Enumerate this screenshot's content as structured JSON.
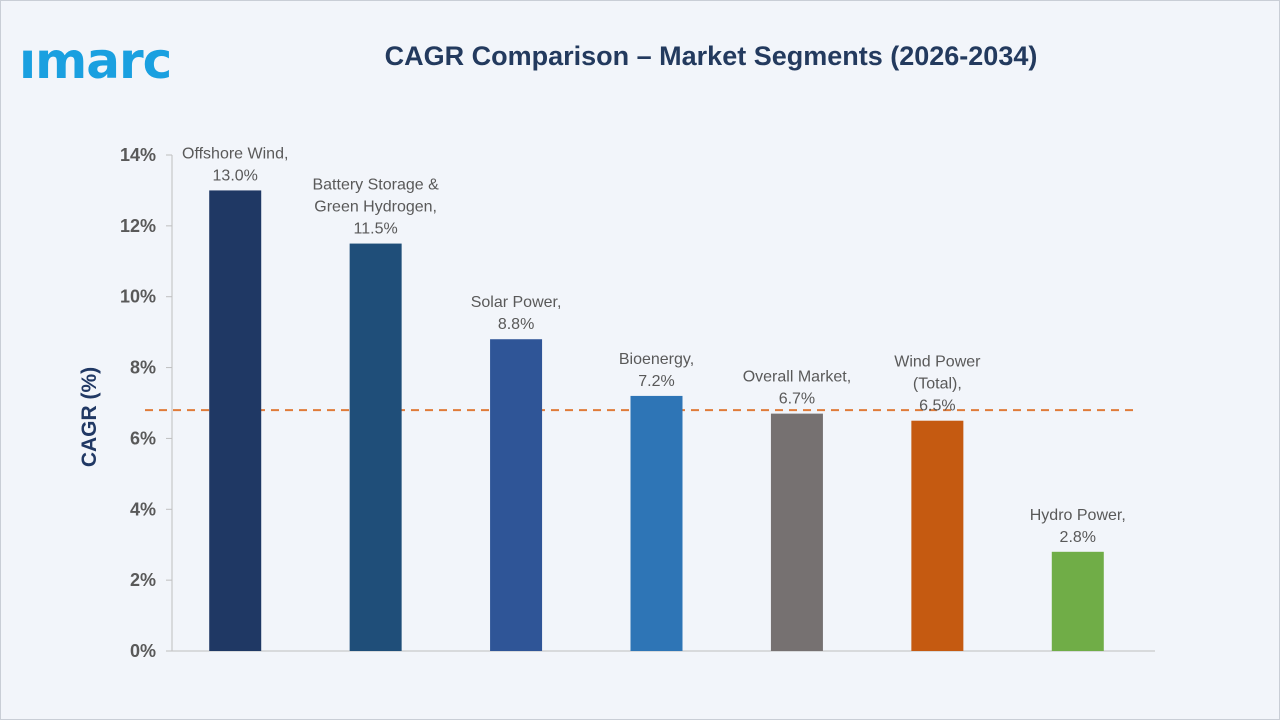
{
  "logo": {
    "text": "ımarc",
    "color": "#1aa0e0"
  },
  "chart_data": {
    "type": "bar",
    "title": "CAGR Comparison – Market Segments (2026-2034)",
    "xlabel": "",
    "ylabel": "CAGR (%)",
    "ylim": [
      0,
      14
    ],
    "yticks": [
      0,
      2,
      4,
      6,
      8,
      10,
      12,
      14
    ],
    "ytick_labels": [
      "0%",
      "2%",
      "4%",
      "6%",
      "8%",
      "10%",
      "12%",
      "14%"
    ],
    "grid": false,
    "categories": [
      "Offshore Wind",
      "Battery Storage & Green Hydrogen",
      "Solar Power",
      "Bioenergy",
      "Overall Market",
      "Wind Power (Total)",
      "Hydro Power"
    ],
    "values": [
      13.0,
      11.5,
      8.8,
      7.2,
      6.7,
      6.5,
      2.8
    ],
    "data_labels": [
      [
        "Offshore Wind,",
        "13.0%"
      ],
      [
        "Battery Storage &",
        "Green Hydrogen,",
        "11.5%"
      ],
      [
        "Solar Power,",
        "8.8%"
      ],
      [
        "Bioenergy,",
        "7.2%"
      ],
      [
        "Overall Market,",
        "6.7%"
      ],
      [
        "Wind Power",
        "(Total),",
        "6.5%"
      ],
      [
        "Hydro Power,",
        "2.8%"
      ]
    ],
    "colors": [
      "#1f3864",
      "#1f4e79",
      "#2f5597",
      "#2e75b6",
      "#767171",
      "#c55a11",
      "#70ad47"
    ],
    "reference_line": {
      "value": 6.8,
      "style": "dashed",
      "color": "#e07b39"
    }
  }
}
